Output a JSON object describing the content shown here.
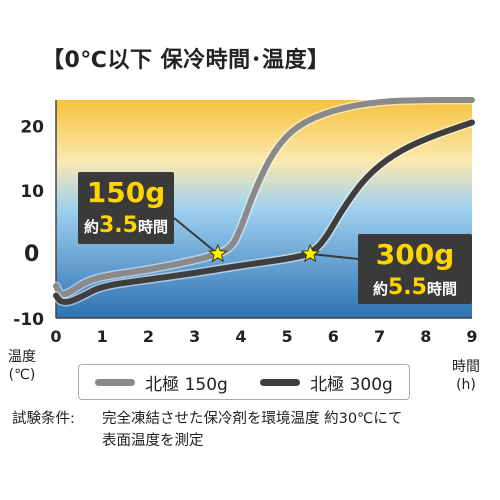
{
  "title": "【0℃以下 保冷時間･温度】",
  "axis": {
    "y_label_line1": "温度",
    "y_label_line2": "(℃)",
    "x_label_line1": "時間",
    "x_label_line2": "(h)"
  },
  "colors": {
    "band_top": "#f6c23e",
    "band_mid": "#9fd0ef",
    "band_low": "#2e72b3",
    "series_150g": "#8a8a8a",
    "series_300g": "#3e3e3e",
    "callout_bg": "#3a3a3a",
    "callout_accent": "#ffd400",
    "marker": "#fff200"
  },
  "chart_data": {
    "type": "line",
    "title": "【0℃以下 保冷時間･温度】",
    "xlabel": "時間(h)",
    "ylabel": "温度(℃)",
    "xlim": [
      0,
      9
    ],
    "ylim": [
      -10,
      24
    ],
    "x_ticks": [
      "0",
      "1",
      "2",
      "3",
      "4",
      "5",
      "6",
      "7",
      "8",
      "9"
    ],
    "y_ticks": [
      "20",
      "10",
      "0",
      "-10"
    ],
    "legend_position": "bottom",
    "series": [
      {
        "name": "北極 150g",
        "points": [
          [
            0,
            -5
          ],
          [
            0.1,
            -6.5
          ],
          [
            0.3,
            -6
          ],
          [
            0.6,
            -4.5
          ],
          [
            1,
            -3.5
          ],
          [
            2,
            -2.5
          ],
          [
            3,
            -1
          ],
          [
            3.5,
            0
          ],
          [
            3.8,
            1
          ],
          [
            4,
            4
          ],
          [
            4.3,
            10
          ],
          [
            4.7,
            16
          ],
          [
            5.2,
            20
          ],
          [
            6,
            22.5
          ],
          [
            7,
            23.8
          ],
          [
            8,
            24
          ],
          [
            9,
            24
          ]
        ]
      },
      {
        "name": "北極 300g",
        "points": [
          [
            0,
            -6.5
          ],
          [
            0.1,
            -7.5
          ],
          [
            0.3,
            -7.5
          ],
          [
            0.6,
            -6.5
          ],
          [
            1,
            -5
          ],
          [
            2,
            -4
          ],
          [
            3,
            -3
          ],
          [
            4,
            -1.8
          ],
          [
            5,
            -0.8
          ],
          [
            5.5,
            0
          ],
          [
            5.8,
            2
          ],
          [
            6.2,
            7
          ],
          [
            6.7,
            12
          ],
          [
            7.3,
            15.5
          ],
          [
            8,
            18
          ],
          [
            9,
            20.5
          ]
        ]
      }
    ],
    "annotations": [
      {
        "series": "北極 150g",
        "x": 3.5,
        "y": 0,
        "line1": "150g",
        "line2_pre": "約",
        "line2_num": "3.5",
        "line2_post": "時間"
      },
      {
        "series": "北極 300g",
        "x": 5.5,
        "y": 0,
        "line1": "300g",
        "line2_pre": "約",
        "line2_num": "5.5",
        "line2_post": "時間"
      }
    ]
  },
  "legend": {
    "s1": "北極 150g",
    "s2": "北極 300g"
  },
  "note": {
    "label": "試験条件:",
    "line1": "完全凍結させた保冷剤を環境温度 約30℃にて",
    "line2": "表面温度を測定"
  }
}
